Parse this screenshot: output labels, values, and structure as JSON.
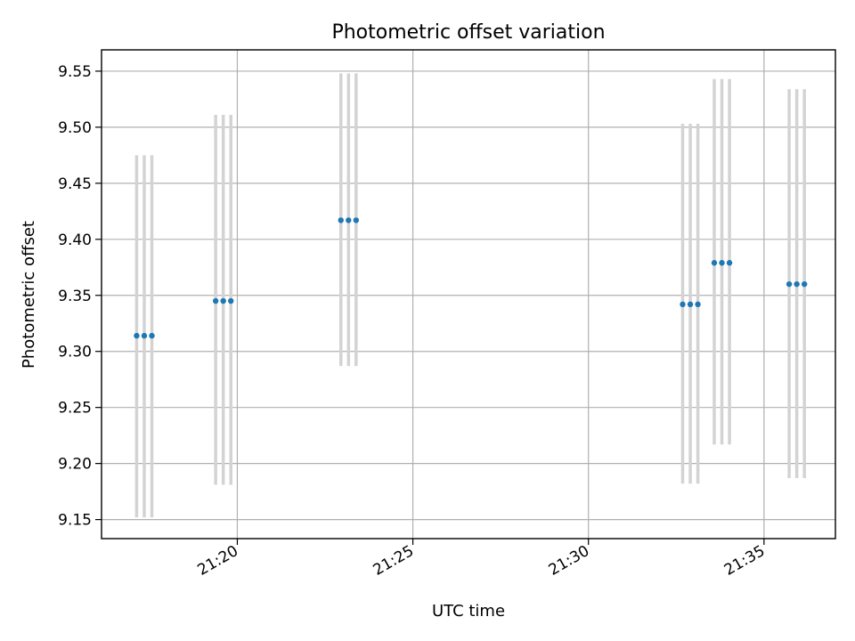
{
  "chart_data": {
    "type": "scatter",
    "title": "Photometric offset variation",
    "xlabel": "UTC time",
    "ylabel": "Photometric offset",
    "x_ticks": [
      "21:20",
      "21:25",
      "21:30",
      "21:35"
    ],
    "y_ticks": [
      "9.15",
      "9.20",
      "9.25",
      "9.30",
      "9.35",
      "9.40",
      "9.45",
      "9.50",
      "9.55"
    ],
    "xlim": [
      "21:16:08",
      "21:37:02"
    ],
    "ylim": [
      9.133,
      9.569
    ],
    "grid": true,
    "legend": "none",
    "point_color": "#1f77b4",
    "errorbar_color": "#d3d3d3",
    "groups": [
      {
        "x": [
          "21:17:08",
          "21:17:21",
          "21:17:34"
        ],
        "y": 9.314,
        "yerr_low": 9.152,
        "yerr_high": 9.475
      },
      {
        "x": [
          "21:19:23",
          "21:19:36",
          "21:19:49"
        ],
        "y": 9.345,
        "yerr_low": 9.181,
        "yerr_high": 9.511
      },
      {
        "x": [
          "21:22:57",
          "21:23:10",
          "21:23:23"
        ],
        "y": 9.417,
        "yerr_low": 9.287,
        "yerr_high": 9.548
      },
      {
        "x": [
          "21:32:41",
          "21:32:54",
          "21:33:07"
        ],
        "y": 9.342,
        "yerr_low": 9.182,
        "yerr_high": 9.503
      },
      {
        "x": [
          "21:33:35",
          "21:33:48",
          "21:34:01"
        ],
        "y": 9.379,
        "yerr_low": 9.217,
        "yerr_high": 9.543
      },
      {
        "x": [
          "21:35:43",
          "21:35:56",
          "21:36:09"
        ],
        "y": 9.36,
        "yerr_low": 9.187,
        "yerr_high": 9.534
      }
    ]
  }
}
